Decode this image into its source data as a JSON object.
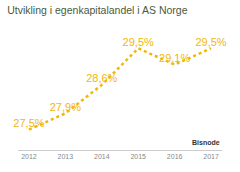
{
  "chart_data": {
    "type": "line",
    "title": "Utvikling i egenkapitalandel i AS Norge",
    "categories": [
      "2012",
      "2013",
      "2014",
      "2015",
      "2016",
      "2017"
    ],
    "values": [
      27.5,
      27.9,
      28.6,
      29.5,
      29.1,
      29.5
    ],
    "value_labels": [
      "27,5%",
      "27,9%",
      "28,6%",
      "29,5%",
      "29,1%",
      "29,5%"
    ],
    "color": "#f2b705",
    "line_style": "dot",
    "ylim": [
      27,
      30
    ],
    "grid": false,
    "data_labels": true,
    "tick_labels": "x",
    "annotations": [
      {
        "text": "Bisnode"
      }
    ]
  }
}
